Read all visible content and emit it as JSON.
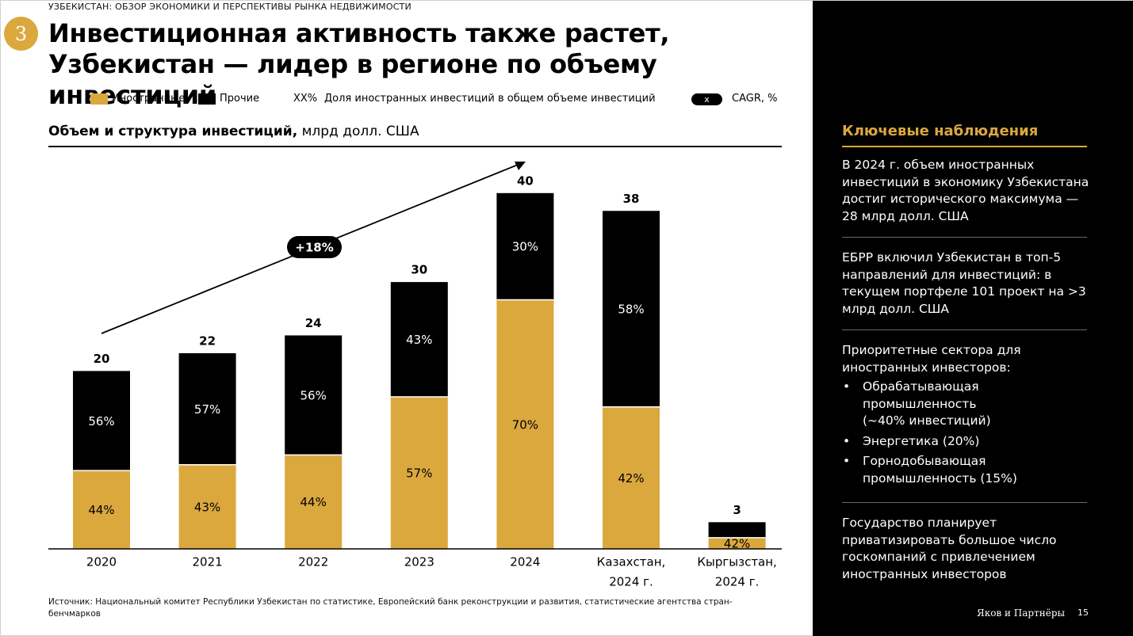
{
  "header": {
    "section_label": "УЗБЕКИСТАН: ОБЗОР ЭКОНОМИКИ И ПЕРСПЕКТИВЫ РЫНКА НЕДВИЖИМОСТИ",
    "slide_number": "3",
    "title_line1": "Инвестиционная активность также растет,",
    "title_line2": "Узбекистан — лидер в регионе по объему инвестиций"
  },
  "legend": {
    "foreign": "Иностранные",
    "other": "Прочие",
    "share_marker": "XX%",
    "share_text": "Доля иностранных инвестиций в общем объеме инвестиций",
    "cagr_marker": "x",
    "cagr_text": "CAGR, %"
  },
  "colors": {
    "foreign": "#DBA83E",
    "other": "#000000",
    "accent": "#DBA83E"
  },
  "chart_data": {
    "type": "bar",
    "stacked": true,
    "title": "Объем и структура инвестиций,",
    "units": "млрд долл. США",
    "categories": [
      "2020",
      "2021",
      "2022",
      "2023",
      "2024",
      "Казахстан,\n2024 г.",
      "Кыргызстан,\n2024 г."
    ],
    "totals": [
      20,
      22,
      24,
      30,
      40,
      38,
      3
    ],
    "series": [
      {
        "name": "Иностранные",
        "share_labels": [
          "44%",
          "43%",
          "44%",
          "57%",
          "70%",
          "42%",
          "42%"
        ]
      },
      {
        "name": "Прочие",
        "share_labels": [
          "56%",
          "57%",
          "56%",
          "43%",
          "30%",
          "58%",
          ""
        ]
      }
    ],
    "foreign_share": [
      0.44,
      0.43,
      0.44,
      0.57,
      0.7,
      0.42,
      0.42
    ],
    "cagr_label": "+18%",
    "ylim": [
      0,
      40
    ]
  },
  "source": "Источник: Национальный комитет Республики Узбекистан по статистике, Европейский банк реконструкции и развития, статистические агентства стран-бенчмарков",
  "panel": {
    "title": "Ключевые наблюдения",
    "obs1": "В 2024 г. объем иностранных инвестиций в экономику Узбекистана достиг исторического максимума — 28 млрд долл. США",
    "obs2": "ЕБРР включил Узбекистан в топ-5 направлений для инвестиций: в текущем портфеле 101 проект на >3 млрд долл. США",
    "obs3_intro": "Приоритетные сектора для иностранных инвесторов:",
    "obs3_items": [
      "Обрабатывающая промышленность (~40% инвестиций)",
      "Энергетика (20%)",
      "Горнодобывающая промышленность (15%)"
    ],
    "obs4": "Государство планирует приватизировать большое число госкомпаний с привлечением иностранных инвесторов",
    "brand": "Яков и Партнёры",
    "page_number": "15"
  }
}
